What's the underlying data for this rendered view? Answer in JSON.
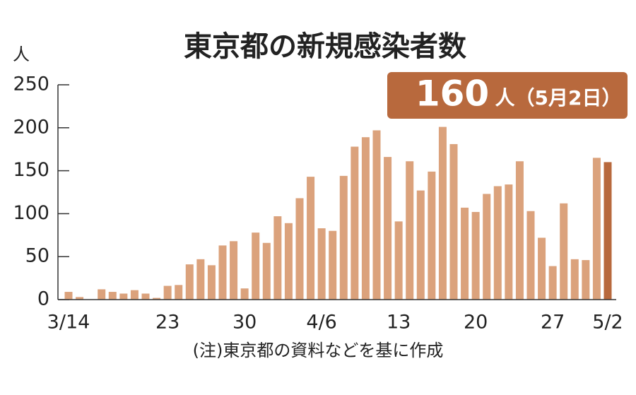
{
  "chart_data": {
    "type": "bar",
    "title": "東京都の新規感染者数",
    "y_unit": "人",
    "annotation": {
      "value": "160",
      "label": "人（5月2日）",
      "color": "#b8693d"
    },
    "note": "(注)東京都の資料などを基に作成",
    "categories": [
      "3/14",
      null,
      null,
      null,
      null,
      null,
      null,
      null,
      null,
      "23",
      null,
      null,
      null,
      null,
      null,
      null,
      "30",
      null,
      null,
      null,
      null,
      null,
      null,
      "4/6",
      null,
      null,
      null,
      null,
      null,
      null,
      "13",
      null,
      null,
      null,
      null,
      null,
      null,
      "20",
      null,
      null,
      null,
      null,
      null,
      null,
      "27",
      null,
      null,
      null,
      null,
      "5/2"
    ],
    "values": [
      9,
      3,
      0,
      12,
      9,
      7,
      11,
      7,
      2,
      16,
      17,
      41,
      47,
      40,
      63,
      68,
      13,
      78,
      66,
      97,
      89,
      118,
      143,
      83,
      80,
      144,
      178,
      189,
      197,
      166,
      91,
      161,
      127,
      149,
      201,
      181,
      107,
      102,
      123,
      132,
      134,
      161,
      103,
      72,
      39,
      112,
      47,
      46,
      165,
      160
    ],
    "colors": [
      "#dba27c",
      "#dba27c",
      "#dba27c",
      "#dba27c",
      "#dba27c",
      "#dba27c",
      "#dba27c",
      "#dba27c",
      "#dba27c",
      "#dba27c",
      "#dba27c",
      "#dba27c",
      "#dba27c",
      "#dba27c",
      "#dba27c",
      "#dba27c",
      "#dba27c",
      "#dba27c",
      "#dba27c",
      "#dba27c",
      "#dba27c",
      "#dba27c",
      "#dba27c",
      "#dba27c",
      "#dba27c",
      "#dba27c",
      "#dba27c",
      "#dba27c",
      "#dba27c",
      "#dba27c",
      "#dba27c",
      "#dba27c",
      "#dba27c",
      "#dba27c",
      "#dba27c",
      "#dba27c",
      "#dba27c",
      "#dba27c",
      "#dba27c",
      "#dba27c",
      "#dba27c",
      "#dba27c",
      "#dba27c",
      "#dba27c",
      "#dba27c",
      "#dba27c",
      "#dba27c",
      "#dba27c",
      "#dba27c",
      "#b8693d"
    ],
    "ylim": [
      0,
      250
    ],
    "yticks": [
      0,
      50,
      100,
      150,
      200,
      250
    ]
  }
}
